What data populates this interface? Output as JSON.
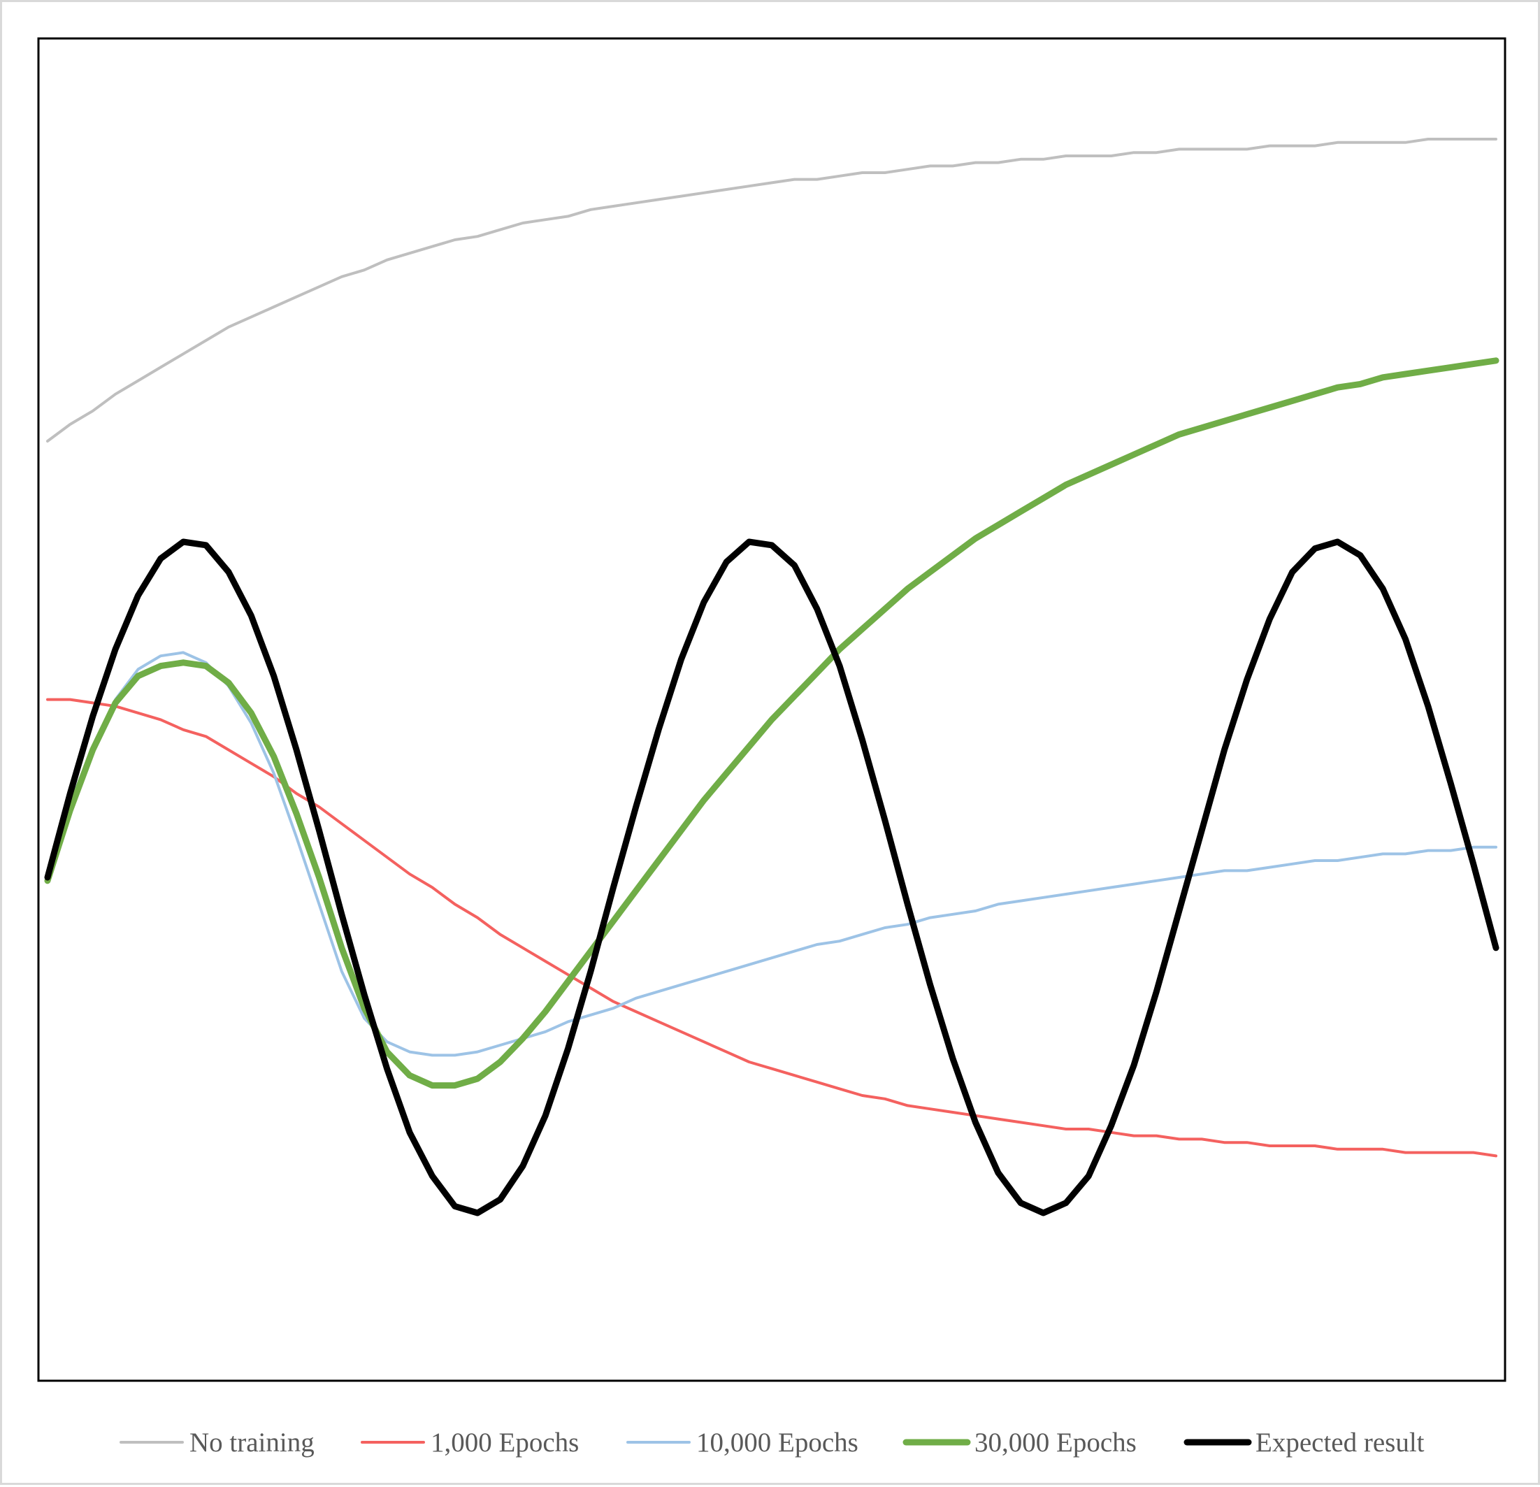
{
  "chart_data": {
    "type": "line",
    "title": "",
    "xlabel": "",
    "ylabel": "",
    "grid": false,
    "legend_position": "bottom",
    "x": [
      0,
      0.25,
      0.5,
      0.75,
      1,
      1.25,
      1.5,
      1.75,
      2,
      2.25,
      2.5,
      2.75,
      3,
      3.25,
      3.5,
      3.75,
      4,
      4.25,
      4.5,
      4.75,
      5,
      5.25,
      5.5,
      5.75,
      6,
      6.25,
      6.5,
      6.75,
      7,
      7.25,
      7.5,
      7.75,
      8,
      8.25,
      8.5,
      8.75,
      9,
      9.25,
      9.5,
      9.75,
      10,
      10.25,
      10.5,
      10.75,
      11,
      11.25,
      11.5,
      11.75,
      12,
      12.25,
      12.5,
      12.75,
      13,
      13.25,
      13.5,
      13.75,
      14,
      14.25,
      14.5,
      14.75,
      15,
      15.25,
      15.5,
      15.75,
      16
    ],
    "xlim": [
      -0.1,
      16.1
    ],
    "ylim": [
      -1.5,
      2.5
    ],
    "series": [
      {
        "name": "No training",
        "color": "#bfbfbf",
        "width": 4,
        "values": [
          1.3,
          1.35,
          1.39,
          1.44,
          1.48,
          1.52,
          1.56,
          1.6,
          1.64,
          1.67,
          1.7,
          1.73,
          1.76,
          1.79,
          1.81,
          1.84,
          1.86,
          1.88,
          1.9,
          1.91,
          1.93,
          1.95,
          1.96,
          1.97,
          1.99,
          2.0,
          2.01,
          2.02,
          2.03,
          2.04,
          2.05,
          2.06,
          2.07,
          2.08,
          2.08,
          2.09,
          2.1,
          2.1,
          2.11,
          2.12,
          2.12,
          2.13,
          2.13,
          2.14,
          2.14,
          2.15,
          2.15,
          2.15,
          2.16,
          2.16,
          2.17,
          2.17,
          2.17,
          2.17,
          2.18,
          2.18,
          2.18,
          2.19,
          2.19,
          2.19,
          2.19,
          2.2,
          2.2,
          2.2,
          2.2
        ]
      },
      {
        "name": "1,000 Epochs",
        "color": "#f4615f",
        "width": 4,
        "values": [
          0.53,
          0.53,
          0.52,
          0.51,
          0.49,
          0.47,
          0.44,
          0.42,
          0.38,
          0.34,
          0.3,
          0.25,
          0.21,
          0.16,
          0.11,
          0.06,
          0.01,
          -0.03,
          -0.08,
          -0.12,
          -0.17,
          -0.21,
          -0.25,
          -0.29,
          -0.33,
          -0.37,
          -0.4,
          -0.43,
          -0.46,
          -0.49,
          -0.52,
          -0.55,
          -0.57,
          -0.59,
          -0.61,
          -0.63,
          -0.65,
          -0.66,
          -0.68,
          -0.69,
          -0.7,
          -0.71,
          -0.72,
          -0.73,
          -0.74,
          -0.75,
          -0.75,
          -0.76,
          -0.77,
          -0.77,
          -0.78,
          -0.78,
          -0.79,
          -0.79,
          -0.8,
          -0.8,
          -0.8,
          -0.81,
          -0.81,
          -0.81,
          -0.82,
          -0.82,
          -0.82,
          -0.82,
          -0.83
        ]
      },
      {
        "name": "10,000 Epochs",
        "color": "#9dc3e6",
        "width": 4,
        "values": [
          0.0,
          0.22,
          0.39,
          0.53,
          0.62,
          0.66,
          0.67,
          0.64,
          0.57,
          0.46,
          0.31,
          0.12,
          -0.08,
          -0.28,
          -0.42,
          -0.49,
          -0.52,
          -0.53,
          -0.53,
          -0.52,
          -0.5,
          -0.48,
          -0.46,
          -0.43,
          -0.41,
          -0.39,
          -0.36,
          -0.34,
          -0.32,
          -0.3,
          -0.28,
          -0.26,
          -0.24,
          -0.22,
          -0.2,
          -0.19,
          -0.17,
          -0.15,
          -0.14,
          -0.12,
          -0.11,
          -0.1,
          -0.08,
          -0.07,
          -0.06,
          -0.05,
          -0.04,
          -0.03,
          -0.02,
          -0.01,
          0.0,
          0.01,
          0.02,
          0.02,
          0.03,
          0.04,
          0.05,
          0.05,
          0.06,
          0.07,
          0.07,
          0.08,
          0.08,
          0.09,
          0.09
        ]
      },
      {
        "name": "30,000 Epochs",
        "color": "#70ad47",
        "width": 9,
        "values": [
          -0.01,
          0.2,
          0.38,
          0.52,
          0.6,
          0.63,
          0.64,
          0.63,
          0.58,
          0.49,
          0.36,
          0.19,
          0.0,
          -0.21,
          -0.39,
          -0.52,
          -0.59,
          -0.62,
          -0.62,
          -0.6,
          -0.55,
          -0.48,
          -0.4,
          -0.31,
          -0.22,
          -0.13,
          -0.04,
          0.05,
          0.14,
          0.23,
          0.31,
          0.39,
          0.47,
          0.54,
          0.61,
          0.68,
          0.74,
          0.8,
          0.86,
          0.91,
          0.96,
          1.01,
          1.05,
          1.09,
          1.13,
          1.17,
          1.2,
          1.23,
          1.26,
          1.29,
          1.32,
          1.34,
          1.36,
          1.38,
          1.4,
          1.42,
          1.44,
          1.46,
          1.47,
          1.49,
          1.5,
          1.51,
          1.52,
          1.53,
          1.54
        ]
      },
      {
        "name": "Expected result",
        "color": "#000000",
        "width": 9,
        "values": [
          0.0,
          0.25,
          0.48,
          0.68,
          0.84,
          0.95,
          1.0,
          0.99,
          0.91,
          0.78,
          0.6,
          0.38,
          0.14,
          -0.11,
          -0.35,
          -0.57,
          -0.76,
          -0.89,
          -0.98,
          -1.0,
          -0.96,
          -0.86,
          -0.71,
          -0.51,
          -0.28,
          -0.03,
          0.21,
          0.44,
          0.65,
          0.82,
          0.94,
          1.0,
          0.99,
          0.93,
          0.8,
          0.63,
          0.41,
          0.17,
          -0.08,
          -0.32,
          -0.54,
          -0.73,
          -0.88,
          -0.97,
          -1.0,
          -0.97,
          -0.89,
          -0.74,
          -0.56,
          -0.34,
          -0.1,
          0.14,
          0.38,
          0.59,
          0.77,
          0.91,
          0.98,
          1.0,
          0.96,
          0.86,
          0.71,
          0.51,
          0.28,
          0.04,
          -0.21
        ]
      }
    ]
  }
}
